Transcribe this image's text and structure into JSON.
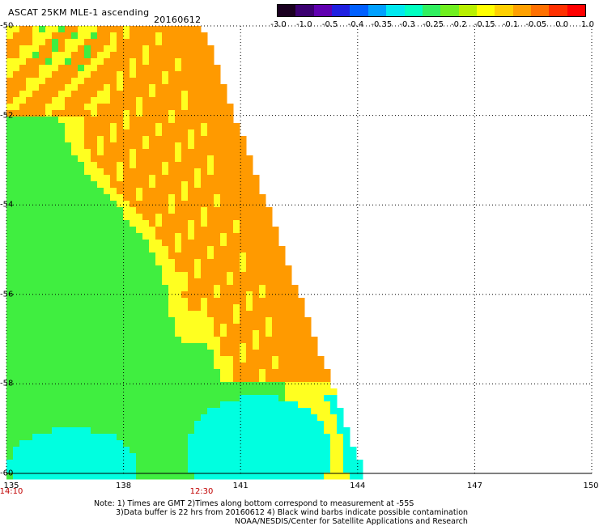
{
  "header": {
    "title": "ASCAT 25KM MLE-1 ascending",
    "date": "20160612"
  },
  "colorbar": {
    "labels": [
      "-3.0",
      "-1.0",
      "-0.5",
      "-0.4",
      "-0.35",
      "-0.3",
      "-0.25",
      "-0.2",
      "-0.15",
      "-0.1",
      "-0.05",
      "0.0",
      "1.0"
    ],
    "colors": [
      "#1a0020",
      "#3b0070",
      "#6000b0",
      "#2020e0",
      "#0060ff",
      "#00a0ff",
      "#00e8f0",
      "#00ffc0",
      "#30f060",
      "#70f020",
      "#b8f000",
      "#ffff00",
      "#ffd000",
      "#ffa000",
      "#ff7000",
      "#ff3000",
      "#ff0000"
    ]
  },
  "axes": {
    "x_ticks": [
      "135",
      "138",
      "141",
      "144",
      "147",
      "150"
    ],
    "y_ticks": [
      "-50",
      "-52",
      "-54",
      "-56",
      "-58",
      "-60"
    ],
    "xlim": [
      135,
      150
    ],
    "ylim": [
      -60,
      -50
    ]
  },
  "times": [
    {
      "label": "14:10",
      "lon": 135
    },
    {
      "label": "12:30",
      "lon": 140
    }
  ],
  "notes": {
    "line1": "Note: 1) Times are GMT 2)Times along bottom correspond to measurement at -55S",
    "line2": "3)Data buffer is 22 hrs from 20160612 4) Black wind barbs indicate possible contamination",
    "line3": "NOAA/NESDIS/Center for Satellite Applications and Research"
  },
  "map_colors": {
    "orange": "#ff9a00",
    "green": "#40ee40",
    "yellow": "#ffff20",
    "cyan": "#00ffe0",
    "blue": "#0050ff"
  }
}
